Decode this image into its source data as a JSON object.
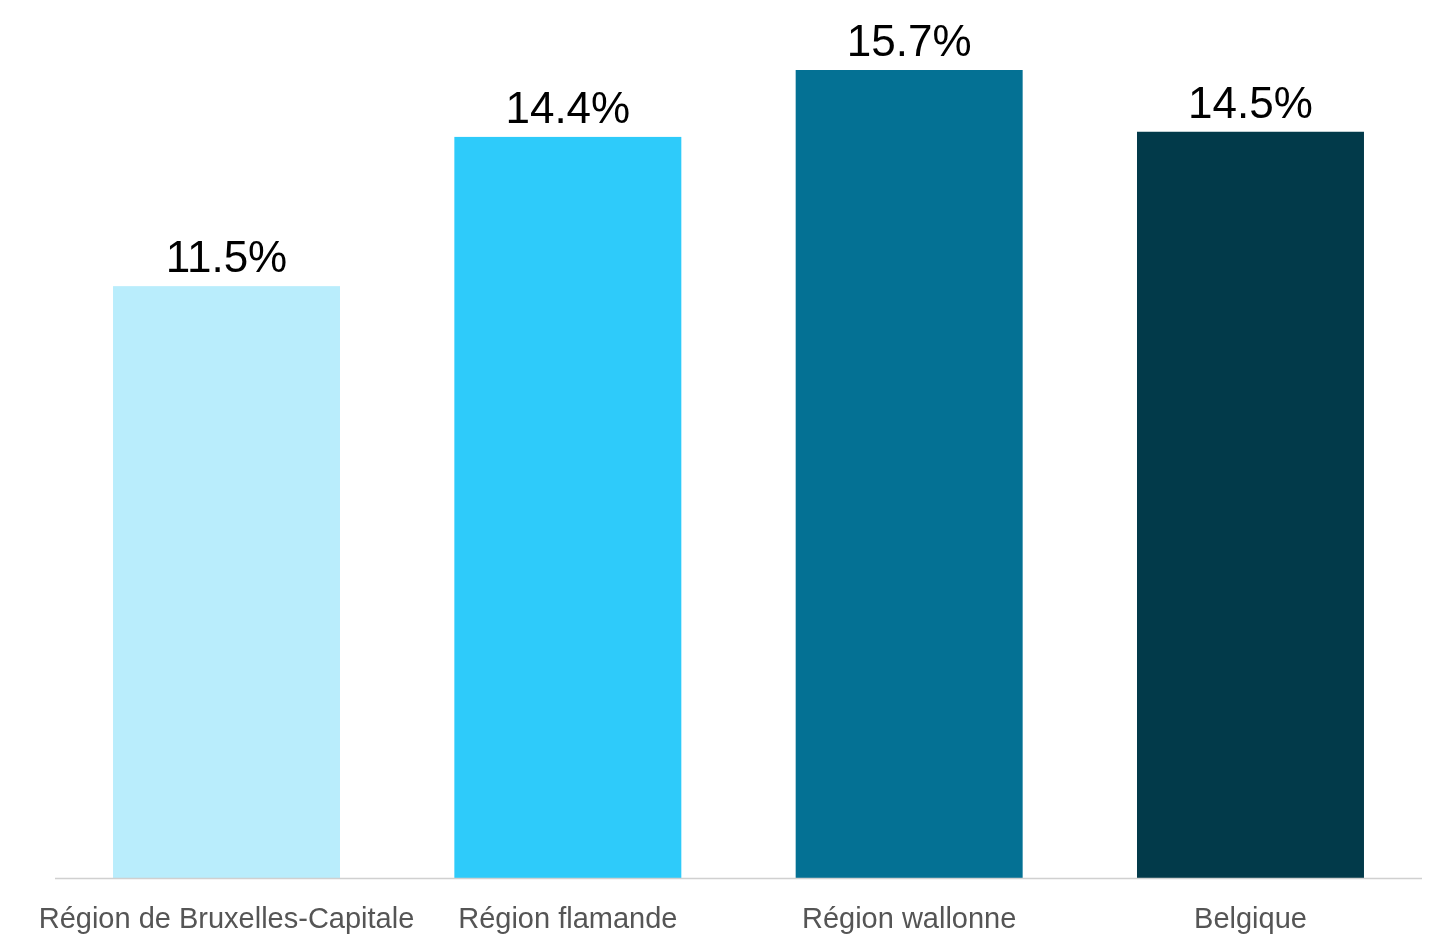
{
  "chart_data": {
    "type": "bar",
    "categories": [
      "Région de Bruxelles-Capitale",
      "Région flamande",
      "Région wallonne",
      "Belgique"
    ],
    "values": [
      11.5,
      14.4,
      15.7,
      14.5
    ],
    "value_labels": [
      "11.5%",
      "14.4%",
      "15.7%",
      "14.5%"
    ],
    "colors": [
      "#b9edfc",
      "#2ecbfa",
      "#047194",
      "#023a4a"
    ],
    "grid": false
  }
}
